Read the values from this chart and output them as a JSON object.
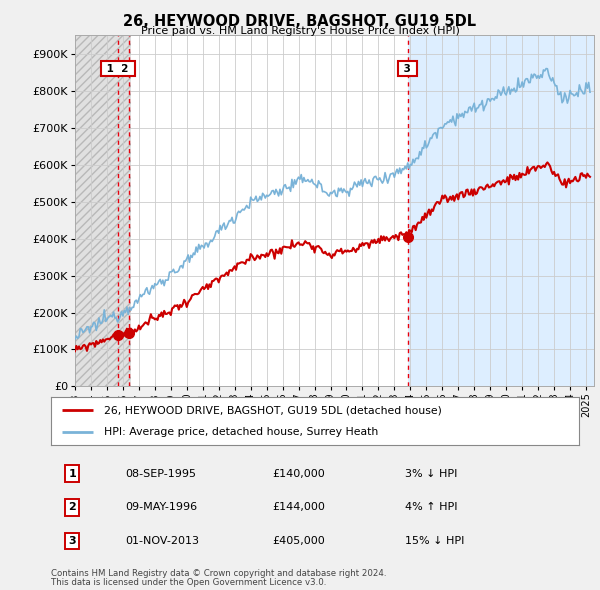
{
  "title": "26, HEYWOOD DRIVE, BAGSHOT, GU19 5DL",
  "subtitle": "Price paid vs. HM Land Registry's House Price Index (HPI)",
  "legend_line1": "26, HEYWOOD DRIVE, BAGSHOT, GU19 5DL (detached house)",
  "legend_line2": "HPI: Average price, detached house, Surrey Heath",
  "footer1": "Contains HM Land Registry data © Crown copyright and database right 2024.",
  "footer2": "This data is licensed under the Open Government Licence v3.0.",
  "transactions": [
    {
      "num": 1,
      "date": "08-SEP-1995",
      "price": 140000,
      "pct": "3%",
      "dir": "↓",
      "year": 1995.69
    },
    {
      "num": 2,
      "date": "09-MAY-1996",
      "price": 144000,
      "pct": "4%",
      "dir": "↑",
      "year": 1996.36
    },
    {
      "num": 3,
      "date": "01-NOV-2013",
      "price": 405000,
      "pct": "15%",
      "dir": "↓",
      "year": 2013.83
    }
  ],
  "vline_color": "#e8000d",
  "price_line_color": "#cc0000",
  "hpi_line_color": "#7ab3d8",
  "dot_color": "#cc0000",
  "hpi_fill_color": "#ddeeff",
  "background_color": "#f0f0f0",
  "plot_bg_color": "#ffffff",
  "grid_color": "#cccccc",
  "hatch_color": "#d8d8d8",
  "ylim": [
    0,
    950000
  ],
  "yticks": [
    0,
    100000,
    200000,
    300000,
    400000,
    500000,
    600000,
    700000,
    800000,
    900000
  ],
  "xlim_start": 1993.0,
  "xlim_end": 2025.5,
  "xticks": [
    1993,
    1994,
    1995,
    1996,
    1997,
    1998,
    1999,
    2000,
    2001,
    2002,
    2003,
    2004,
    2005,
    2006,
    2007,
    2008,
    2009,
    2010,
    2011,
    2012,
    2013,
    2014,
    2015,
    2016,
    2017,
    2018,
    2019,
    2020,
    2021,
    2022,
    2023,
    2024,
    2025
  ],
  "hatch_end": 1996.5,
  "blue_fill_start": 2013.83
}
